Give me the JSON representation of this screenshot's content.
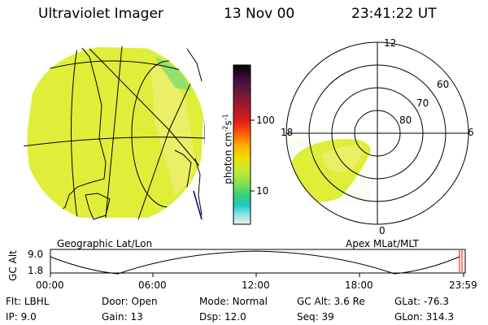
{
  "header": {
    "instrument": "Ultraviolet Imager",
    "date": "13 Nov 00",
    "time": "23:41:22 UT"
  },
  "left_panel": {
    "caption": "Geographic Lat/Lon"
  },
  "right_panel": {
    "caption": "Apex MLat/MLT",
    "mlt_labels": {
      "top": "12",
      "left": "18",
      "right": "6",
      "bottom": "0"
    },
    "lat_labels": [
      "60",
      "70",
      "80"
    ]
  },
  "colorbar": {
    "unit_label": "photon cm",
    "unit_sup1": "-2",
    "unit_s": "s",
    "unit_sup2": "-1",
    "ticks": [
      "100",
      "10"
    ],
    "colors": [
      "#000000",
      "#3c0c3e",
      "#6e1a3e",
      "#b31a2a",
      "#e11c1c",
      "#ff5a00",
      "#ffaa00",
      "#f0dc00",
      "#c6e93a",
      "#88e24a",
      "#35d07a",
      "#22c6c6",
      "#8fe3e3",
      "#d8f2f2",
      "#eeeeee"
    ]
  },
  "timeline": {
    "ylabel": "GC Alt",
    "y_top": "9.0",
    "y_bottom": "1.8",
    "ticks": [
      "00:00",
      "06:00",
      "12:00",
      "18:00",
      "23:59"
    ],
    "current_marker_color": "#ff0000"
  },
  "info": {
    "flt_label": "Flt:",
    "flt_value": "LBHL",
    "ip_label": "IP:",
    "ip_value": "9.0",
    "door_label": "Door:",
    "door_value": "Open",
    "gain_label": "Gain:",
    "gain_value": "13",
    "mode_label": "Mode:",
    "mode_value": "Normal",
    "dsp_label": "Dsp:",
    "dsp_value": "12.0",
    "gcalt_label": "GC Alt:",
    "gcalt_value": "3.6 Re",
    "seq_label": "Seq:",
    "seq_value": "39",
    "glat_label": "GLat:",
    "glat_value": "-76.3",
    "glon_label": "GLon:",
    "glon_value": "314.3"
  }
}
